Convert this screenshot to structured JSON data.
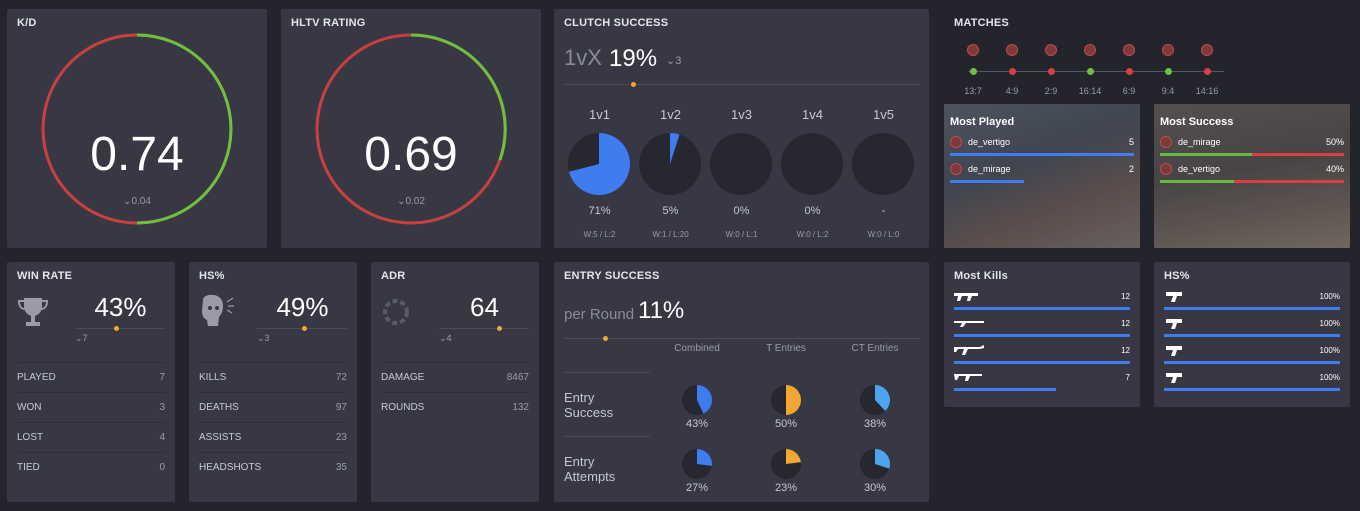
{
  "kd": {
    "title": "K/D",
    "value": "0.74",
    "delta": "0.04",
    "colors": {
      "bad": "#c8413e",
      "good": "#6cc13f"
    }
  },
  "hltv": {
    "title": "HLTV RATING",
    "value": "0.69",
    "delta": "0.02"
  },
  "clutch": {
    "title": "CLUTCH SUCCESS",
    "prefix": "1vX",
    "value": "19%",
    "delta": "3",
    "items": [
      {
        "label": "1v1",
        "pct_text": "71%",
        "pct": 71,
        "wl": "W:5 / L:2"
      },
      {
        "label": "1v2",
        "pct_text": "5%",
        "pct": 5,
        "wl": "W:1 / L:20"
      },
      {
        "label": "1v3",
        "pct_text": "0%",
        "pct": 0,
        "wl": "W:0 / L:1"
      },
      {
        "label": "1v4",
        "pct_text": "0%",
        "pct": 0,
        "wl": "W:0 / L:2"
      },
      {
        "label": "1v5",
        "pct_text": "-",
        "pct": 0,
        "wl": "W:0 / L:0"
      }
    ]
  },
  "matches": {
    "title": "MATCHES",
    "items": [
      {
        "score": "13:7",
        "result": "win"
      },
      {
        "score": "4:9",
        "result": "loss"
      },
      {
        "score": "2:9",
        "result": "loss"
      },
      {
        "score": "16:14",
        "result": "win"
      },
      {
        "score": "6:9",
        "result": "loss"
      },
      {
        "score": "9:4",
        "result": "win"
      },
      {
        "score": "14:16",
        "result": "loss"
      }
    ]
  },
  "most_played": {
    "title": "Most Played",
    "items": [
      {
        "map": "de_vertigo",
        "count": "5"
      },
      {
        "map": "de_mirage",
        "count": "2"
      }
    ]
  },
  "most_success": {
    "title": "Most Success",
    "items": [
      {
        "map": "de_mirage",
        "pct": "50%",
        "win": 0.5
      },
      {
        "map": "de_vertigo",
        "pct": "40%",
        "win": 0.4
      }
    ]
  },
  "winrate": {
    "title": "WIN RATE",
    "value": "43%",
    "delta": "7",
    "stats": [
      [
        "PLAYED",
        "7"
      ],
      [
        "WON",
        "3"
      ],
      [
        "LOST",
        "4"
      ],
      [
        "TIED",
        "0"
      ]
    ]
  },
  "hs": {
    "title": "HS%",
    "value": "49%",
    "delta": "3",
    "stats": [
      [
        "KILLS",
        "72"
      ],
      [
        "DEATHS",
        "97"
      ],
      [
        "ASSISTS",
        "23"
      ],
      [
        "HEADSHOTS",
        "35"
      ]
    ]
  },
  "adr": {
    "title": "ADR",
    "value": "64",
    "delta": "4",
    "stats": [
      [
        "DAMAGE",
        "8467"
      ],
      [
        "ROUNDS",
        "132"
      ]
    ]
  },
  "entry": {
    "title": "ENTRY SUCCESS",
    "prefix": "per Round",
    "value": "11%",
    "cols": [
      "Combined",
      "T Entries",
      "CT Entries"
    ],
    "rows": [
      {
        "label": "Entry Success",
        "values": [
          {
            "t": "43%",
            "p": 43,
            "c": "#3f7cf0"
          },
          {
            "t": "50%",
            "p": 50,
            "c": "#f0a733"
          },
          {
            "t": "38%",
            "p": 38,
            "c": "#4ea4ee"
          }
        ]
      },
      {
        "label": "Entry Attempts",
        "values": [
          {
            "t": "27%",
            "p": 27,
            "c": "#3f7cf0"
          },
          {
            "t": "23%",
            "p": 23,
            "c": "#f0a733"
          },
          {
            "t": "30%",
            "p": 30,
            "c": "#4ea4ee"
          }
        ]
      }
    ]
  },
  "most_kills": {
    "title": "Most Kills",
    "items": [
      {
        "value": "12",
        "fill": 1
      },
      {
        "value": "12",
        "fill": 1
      },
      {
        "value": "12",
        "fill": 1
      },
      {
        "value": "7",
        "fill": 0.58
      }
    ]
  },
  "hs_weapons": {
    "title": "HS%",
    "items": [
      {
        "value": "100%",
        "fill": 1
      },
      {
        "value": "100%",
        "fill": 1
      },
      {
        "value": "100%",
        "fill": 1
      },
      {
        "value": "100%",
        "fill": 1
      }
    ]
  }
}
